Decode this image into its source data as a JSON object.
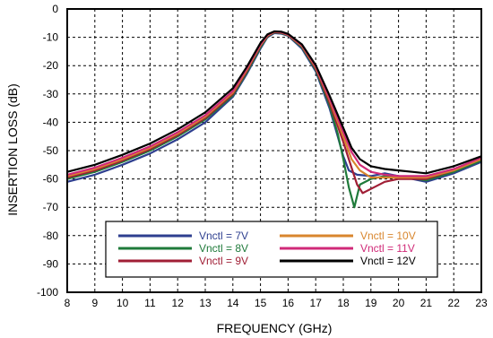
{
  "chart_data": {
    "type": "line",
    "xlabel": "FREQUENCY (GHz)",
    "ylabel": "INSERTION LOSS (dB)",
    "xlim": [
      8,
      23
    ],
    "ylim": [
      -100,
      0
    ],
    "x_ticks": [
      "8",
      "9",
      "10",
      "11",
      "12",
      "13",
      "14",
      "15",
      "16",
      "17",
      "18",
      "19",
      "20",
      "21",
      "22",
      "23"
    ],
    "y_ticks": [
      "0",
      "-10",
      "-20",
      "-30",
      "-40",
      "-50",
      "-60",
      "-70",
      "-80",
      "-90",
      "-100"
    ],
    "grid": true,
    "legend_position": "bottom-center",
    "series": [
      {
        "name": "Vnctl = 7V",
        "color": "#2e3f8f",
        "x": [
          8,
          9,
          10,
          11,
          12,
          13,
          14,
          14.5,
          15,
          15.25,
          15.5,
          15.75,
          16,
          16.5,
          17,
          17.5,
          17.8,
          18,
          18.2,
          18.5,
          19,
          19.5,
          20,
          21,
          22,
          23
        ],
        "y": [
          -61,
          -58.5,
          -55,
          -51,
          -46,
          -40,
          -31,
          -23,
          -14,
          -10,
          -8.5,
          -8.7,
          -9.5,
          -14,
          -22,
          -35,
          -45,
          -52,
          -57,
          -58.5,
          -59,
          -58,
          -59,
          -61,
          -58,
          -54
        ]
      },
      {
        "name": "Vnctl = 8V",
        "color": "#1f7a3a",
        "x": [
          8,
          9,
          10,
          11,
          12,
          13,
          14,
          14.5,
          15,
          15.25,
          15.5,
          15.75,
          16,
          16.5,
          17,
          17.5,
          17.8,
          18,
          18.2,
          18.4,
          18.6,
          19,
          19.5,
          20,
          21,
          22,
          23
        ],
        "y": [
          -60,
          -57.5,
          -54,
          -50,
          -45,
          -39,
          -30.5,
          -22.5,
          -13.5,
          -9.8,
          -8.3,
          -8.5,
          -9.3,
          -13.5,
          -21.5,
          -34,
          -44,
          -53,
          -63,
          -70,
          -62,
          -60,
          -59,
          -59,
          -60.5,
          -57.5,
          -53.5
        ]
      },
      {
        "name": "Vnctl = 9V",
        "color": "#a01e35",
        "x": [
          8,
          9,
          10,
          11,
          12,
          13,
          14,
          14.5,
          15,
          15.25,
          15.5,
          15.75,
          16,
          16.5,
          17,
          17.5,
          18,
          18.3,
          18.5,
          18.7,
          19,
          19.5,
          20,
          21,
          22,
          23
        ],
        "y": [
          -59.5,
          -57,
          -53.5,
          -49.5,
          -44.5,
          -38.5,
          -30,
          -22,
          -13,
          -9.6,
          -8.2,
          -8.4,
          -9.2,
          -13.2,
          -21,
          -33,
          -47,
          -56,
          -62,
          -65,
          -63.5,
          -61,
          -60,
          -60,
          -57,
          -53
        ]
      },
      {
        "name": "Vnctl = 10V",
        "color": "#d8862e",
        "x": [
          8,
          9,
          10,
          11,
          12,
          13,
          14,
          14.5,
          15,
          15.25,
          15.5,
          15.75,
          16,
          16.5,
          17,
          17.5,
          18,
          18.3,
          18.6,
          19,
          19.5,
          20,
          21,
          22,
          23
        ],
        "y": [
          -59,
          -56.5,
          -53,
          -49,
          -44,
          -38,
          -29.5,
          -21.5,
          -12.8,
          -9.4,
          -8.1,
          -8.3,
          -9.1,
          -13,
          -20.5,
          -32,
          -45,
          -53,
          -57,
          -59.5,
          -59.5,
          -59.5,
          -59.5,
          -57,
          -53
        ]
      },
      {
        "name": "Vnctl = 11V",
        "color": "#d02a78",
        "x": [
          8,
          9,
          10,
          11,
          12,
          13,
          14,
          14.5,
          15,
          15.25,
          15.5,
          15.75,
          16,
          16.5,
          17,
          17.5,
          18,
          18.3,
          18.6,
          19,
          19.5,
          20,
          21,
          22,
          23
        ],
        "y": [
          -58.5,
          -56,
          -52.5,
          -48.5,
          -43.5,
          -37.5,
          -29,
          -21,
          -12.5,
          -9.2,
          -8,
          -8.2,
          -9,
          -12.8,
          -20.2,
          -31.5,
          -43.5,
          -50.5,
          -55,
          -57.5,
          -58.5,
          -59,
          -59,
          -56.5,
          -52.5
        ]
      },
      {
        "name": "Vnctl = 12V",
        "color": "#000000",
        "x": [
          8,
          9,
          10,
          11,
          12,
          13,
          14,
          14.5,
          15,
          15.25,
          15.5,
          15.75,
          16,
          16.5,
          17,
          17.5,
          18,
          18.3,
          18.6,
          19,
          19.5,
          20,
          20.5,
          21,
          22,
          23
        ],
        "y": [
          -57.5,
          -55,
          -51.5,
          -47.5,
          -42.5,
          -36.5,
          -28,
          -20.5,
          -12,
          -9,
          -7.9,
          -8,
          -8.8,
          -12.5,
          -19.8,
          -30.5,
          -42,
          -49,
          -53,
          -55.5,
          -56.5,
          -57,
          -57.5,
          -58,
          -55.5,
          -52
        ]
      }
    ]
  }
}
